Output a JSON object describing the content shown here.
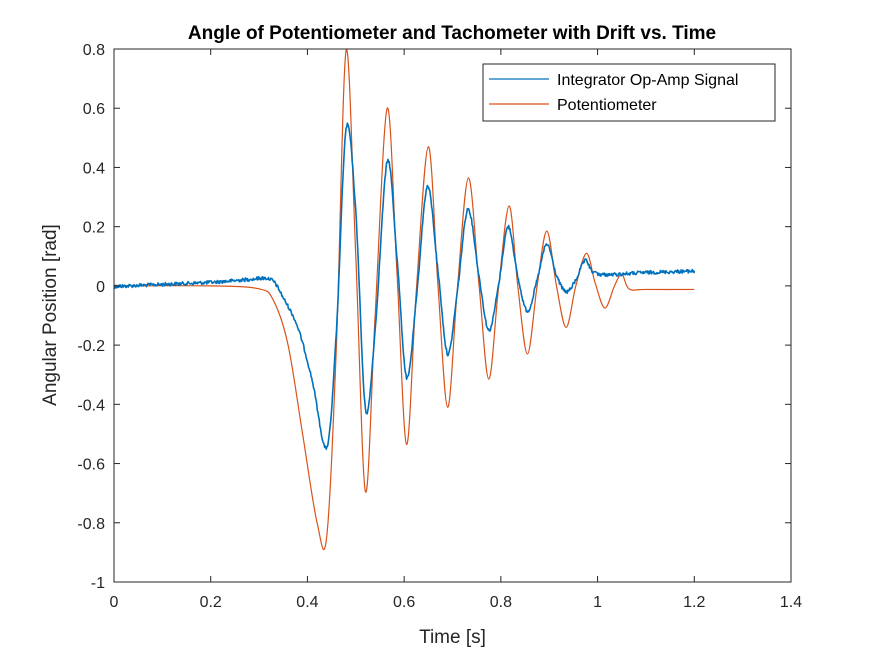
{
  "chart_data": {
    "type": "line",
    "title": "Angle of Potentiometer and Tachometer with Drift vs. Time",
    "xlabel": "Time [s]",
    "ylabel": "Angular Position [rad]",
    "xlim": [
      0,
      1.4
    ],
    "ylim": [
      -1,
      0.8
    ],
    "xticks": [
      0,
      0.2,
      0.4,
      0.6,
      0.8,
      1,
      1.2,
      1.4
    ],
    "yticks": [
      -1,
      -0.8,
      -0.6,
      -0.4,
      -0.2,
      0,
      0.2,
      0.4,
      0.6,
      0.8
    ],
    "grid": false,
    "legend_position": "top-right",
    "series": [
      {
        "name": "Integrator Op-Amp Signal",
        "color": "#0072BD",
        "noise": 0.006,
        "x": [
          0,
          0.1,
          0.2,
          0.28,
          0.31,
          0.33,
          0.35,
          0.38,
          0.41,
          0.44,
          0.46,
          0.48,
          0.5,
          0.52,
          0.54,
          0.565,
          0.585,
          0.605,
          0.625,
          0.648,
          0.67,
          0.69,
          0.71,
          0.732,
          0.755,
          0.775,
          0.795,
          0.815,
          0.835,
          0.855,
          0.875,
          0.895,
          0.915,
          0.935,
          0.955,
          0.975,
          1.0,
          1.1,
          1.2
        ],
        "y": [
          -0.002,
          0.005,
          0.012,
          0.022,
          0.026,
          0.015,
          -0.04,
          -0.14,
          -0.32,
          -0.545,
          -0.15,
          0.53,
          0.25,
          -0.415,
          -0.15,
          0.42,
          0.1,
          -0.31,
          -0.05,
          0.335,
          0.05,
          -0.23,
          -0.02,
          0.26,
          0.03,
          -0.15,
          0.0,
          0.2,
          0.03,
          -0.085,
          0.02,
          0.14,
          0.035,
          -0.02,
          0.02,
          0.085,
          0.04,
          0.045,
          0.05
        ]
      },
      {
        "name": "Potentiometer",
        "color": "#D95319",
        "noise": 0,
        "x": [
          0,
          0.2,
          0.3,
          0.33,
          0.36,
          0.39,
          0.42,
          0.44,
          0.46,
          0.48,
          0.5,
          0.52,
          0.54,
          0.565,
          0.585,
          0.605,
          0.625,
          0.65,
          0.67,
          0.69,
          0.71,
          0.733,
          0.755,
          0.775,
          0.795,
          0.817,
          0.835,
          0.855,
          0.875,
          0.895,
          0.915,
          0.935,
          0.955,
          0.977,
          0.995,
          1.015,
          1.035,
          1.05,
          1.065,
          1.1,
          1.2
        ],
        "y": [
          0,
          0,
          -0.01,
          -0.05,
          -0.2,
          -0.5,
          -0.8,
          -0.845,
          -0.2,
          0.795,
          0.1,
          -0.695,
          -0.1,
          0.6,
          0.05,
          -0.535,
          -0.02,
          0.47,
          0.0,
          -0.41,
          -0.01,
          0.365,
          0.0,
          -0.315,
          -0.01,
          0.27,
          0.0,
          -0.23,
          0.0,
          0.185,
          0.0,
          -0.14,
          0.0,
          0.11,
          0.01,
          -0.075,
          0.0,
          0.04,
          -0.01,
          -0.012,
          -0.012
        ]
      }
    ]
  }
}
